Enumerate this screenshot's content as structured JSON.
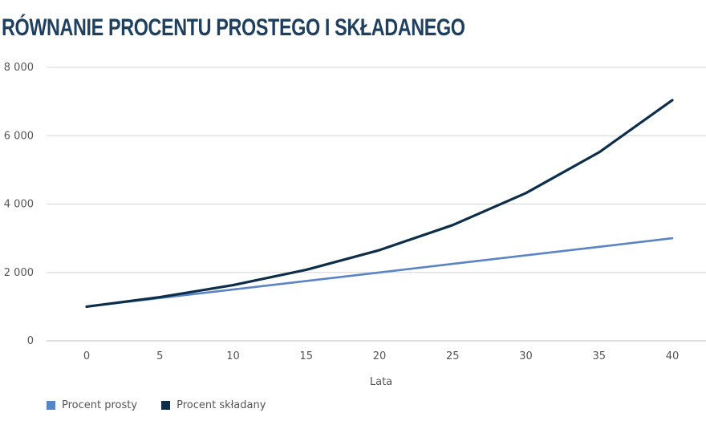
{
  "chart_data": {
    "type": "line",
    "title": "RÓWNANIE PROCENTU PROSTEGO I SKŁADANEGO",
    "xlabel": "Lata",
    "ylabel": "",
    "x": [
      0,
      5,
      10,
      15,
      20,
      25,
      30,
      35,
      40
    ],
    "y_ticks": [
      "0",
      "2 000",
      "4 000",
      "6 000",
      "8 000"
    ],
    "ylim": [
      0,
      8000
    ],
    "grid": true,
    "legend_position": "bottom-left",
    "series": [
      {
        "name": "Procent prosty",
        "color": "#5b84c4",
        "values": [
          1000,
          1250,
          1500,
          1750,
          2000,
          2250,
          2500,
          2750,
          3000
        ]
      },
      {
        "name": "Procent składany",
        "color": "#0d2e4a",
        "values": [
          1000,
          1276,
          1629,
          2079,
          2653,
          3386,
          4322,
          5516,
          7040
        ]
      }
    ]
  }
}
